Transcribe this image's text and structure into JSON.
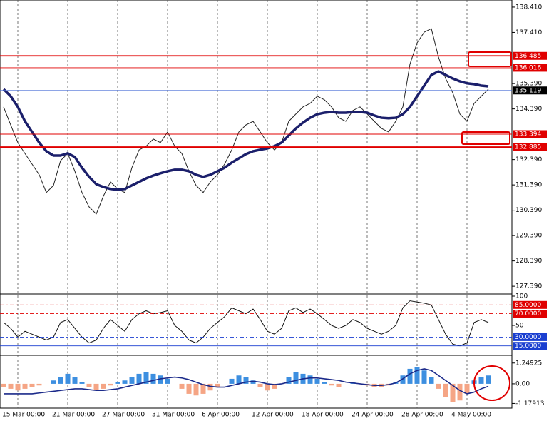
{
  "chart_data": [
    {
      "type": "line",
      "categories": [
        null,
        null,
        "15 Mar 00:00",
        null,
        null,
        null,
        null,
        null,
        null,
        "21 Mar 00:00",
        null,
        null,
        null,
        null,
        null,
        null,
        "27 Mar 00:00",
        null,
        null,
        null,
        null,
        null,
        null,
        "31 Mar 00:00",
        null,
        null,
        null,
        null,
        null,
        null,
        "6 Apr 00:00",
        null,
        null,
        null,
        null,
        null,
        null,
        "12 Apr 00:00",
        null,
        null,
        null,
        null,
        null,
        null,
        "18 Apr 00:00",
        null,
        null,
        null,
        null,
        null,
        null,
        "24 Apr 00:00",
        null,
        null,
        null,
        null,
        null,
        null,
        "28 Apr 00:00",
        null,
        null,
        null,
        null,
        null,
        null,
        "4 May 00:00",
        null,
        null,
        null
      ],
      "ylim": [
        127.14,
        138.69
      ],
      "yticks": [
        {
          "value": 138.41,
          "label": "138.410"
        },
        {
          "value": 137.41,
          "label": "137.410"
        },
        {
          "value": 135.39,
          "label": "135.390"
        },
        {
          "value": 134.39,
          "label": "134.390"
        },
        {
          "value": 132.39,
          "label": "132.390"
        },
        {
          "value": 131.39,
          "label": "131.390"
        },
        {
          "value": 130.39,
          "label": "130.390"
        },
        {
          "value": 129.39,
          "label": "129.390"
        },
        {
          "value": 128.39,
          "label": "128.390"
        },
        {
          "value": 127.39,
          "label": "127.390"
        }
      ],
      "series": [
        {
          "type": "line",
          "color": "#222222",
          "style": "thin",
          "values": [
            134.47,
            133.76,
            133.06,
            132.63,
            132.21,
            131.79,
            131.09,
            131.37,
            132.35,
            132.63,
            131.93,
            131.09,
            130.52,
            130.24,
            130.95,
            131.51,
            131.23,
            131.09,
            132.07,
            132.77,
            132.92,
            133.2,
            133.06,
            133.48,
            132.92,
            132.63,
            131.93,
            131.37,
            131.09,
            131.51,
            131.79,
            132.21,
            132.77,
            133.48,
            133.76,
            133.9,
            133.48,
            133.06,
            132.77,
            133.06,
            133.9,
            134.19,
            134.47,
            134.61,
            134.89,
            134.75,
            134.47,
            134.04,
            133.9,
            134.33,
            134.47,
            134.19,
            133.9,
            133.62,
            133.48,
            133.9,
            134.47,
            136.16,
            137.0,
            137.42,
            137.56,
            136.44,
            135.59,
            135.03,
            134.19,
            133.9,
            134.61,
            134.89,
            135.17
          ]
        },
        {
          "type": "line",
          "color": "#1b1f6b",
          "style": "thick",
          "values": [
            135.17,
            134.89,
            134.47,
            133.9,
            133.48,
            133.06,
            132.72,
            132.55,
            132.55,
            132.64,
            132.49,
            132.07,
            131.71,
            131.42,
            131.31,
            131.23,
            131.2,
            131.23,
            131.37,
            131.51,
            131.65,
            131.76,
            131.85,
            131.93,
            131.99,
            131.99,
            131.93,
            131.79,
            131.71,
            131.79,
            131.93,
            132.07,
            132.27,
            132.44,
            132.61,
            132.72,
            132.78,
            132.83,
            132.92,
            133.06,
            133.34,
            133.62,
            133.85,
            134.04,
            134.18,
            134.24,
            134.27,
            134.24,
            134.24,
            134.27,
            134.27,
            134.24,
            134.13,
            134.04,
            134.02,
            134.04,
            134.18,
            134.47,
            134.89,
            135.31,
            135.73,
            135.87,
            135.73,
            135.59,
            135.48,
            135.4,
            135.37,
            135.31,
            135.28
          ]
        }
      ],
      "hlines": [
        {
          "value": 136.485,
          "color": "#e00000",
          "label_bg": "#e00000",
          "style": "thick"
        },
        {
          "value": 136.016,
          "color": "#e00000",
          "label_bg": "#e00000",
          "style": "thin"
        },
        {
          "value": 135.119,
          "color": "#4a6fd8",
          "label_bg": "#000000",
          "style": "thin"
        },
        {
          "value": 133.394,
          "color": "#e00000",
          "label_bg": "#e00000",
          "style": "thin"
        },
        {
          "value": 132.885,
          "color": "#e00000",
          "label_bg": "#e00000",
          "style": "thick"
        }
      ]
    },
    {
      "type": "line",
      "ylim": [
        0,
        100
      ],
      "yticks": [
        100,
        50
      ],
      "series": [
        {
          "type": "line",
          "color": "#111111",
          "style": "thin",
          "values": [
            55,
            45,
            30,
            40,
            35,
            30,
            25,
            30,
            55,
            60,
            45,
            30,
            20,
            25,
            45,
            60,
            50,
            40,
            60,
            70,
            75,
            70,
            72,
            75,
            50,
            40,
            25,
            20,
            30,
            45,
            55,
            65,
            80,
            75,
            70,
            78,
            60,
            40,
            35,
            45,
            75,
            80,
            72,
            78,
            70,
            60,
            50,
            45,
            50,
            60,
            55,
            45,
            40,
            35,
            40,
            50,
            80,
            92,
            90,
            88,
            85,
            60,
            35,
            18,
            15,
            20,
            55,
            60,
            55
          ]
        }
      ],
      "hlines": [
        {
          "value": 85,
          "label": "85.0000",
          "color": "#e00000",
          "label_bg": "#e00000",
          "style": "dashed"
        },
        {
          "value": 70,
          "label": "70.0000",
          "color": "#e00000",
          "label_bg": "#e00000",
          "style": "dashed"
        },
        {
          "value": 30,
          "label": "30.0000",
          "color": "#1a3fd0",
          "label_bg": "#1a3fd0",
          "style": "dashed"
        },
        {
          "value": 15,
          "label": "15.0000",
          "color": "#1a3fd0",
          "label_bg": "#1a3fd0",
          "style": "thin"
        }
      ]
    },
    {
      "type": "bar",
      "ylim": [
        -1.375,
        1.625
      ],
      "yticks": [
        1.24925,
        {
          "value": 0,
          "label": "0.00"
        },
        -1.17913
      ],
      "series": [
        {
          "type": "bar",
          "color": "#3d8fe0",
          "negative_color": "#f5a585",
          "values": [
            -0.2,
            -0.3,
            -0.4,
            -0.3,
            -0.2,
            -0.1,
            0.0,
            0.2,
            0.4,
            0.6,
            0.4,
            0.1,
            -0.2,
            -0.4,
            -0.3,
            -0.1,
            0.1,
            0.2,
            0.4,
            0.6,
            0.7,
            0.6,
            0.5,
            0.3,
            0.0,
            -0.3,
            -0.6,
            -0.7,
            -0.6,
            -0.4,
            -0.2,
            0.0,
            0.3,
            0.5,
            0.4,
            0.2,
            -0.2,
            -0.4,
            -0.3,
            0.0,
            0.4,
            0.7,
            0.6,
            0.5,
            0.3,
            0.1,
            -0.1,
            -0.2,
            0.0,
            0.1,
            0.0,
            -0.1,
            -0.2,
            -0.2,
            -0.1,
            0.1,
            0.5,
            0.9,
            1.0,
            0.8,
            0.4,
            -0.3,
            -0.8,
            -1.1,
            -1.0,
            -0.6,
            0.2,
            0.4,
            0.5
          ]
        },
        {
          "type": "line",
          "color": "#1b2a8a",
          "style": "medium",
          "values": [
            -0.6,
            -0.6,
            -0.6,
            -0.6,
            -0.6,
            -0.55,
            -0.5,
            -0.45,
            -0.4,
            -0.35,
            -0.3,
            -0.3,
            -0.35,
            -0.4,
            -0.4,
            -0.35,
            -0.3,
            -0.2,
            -0.1,
            0.0,
            0.1,
            0.2,
            0.3,
            0.35,
            0.4,
            0.35,
            0.25,
            0.1,
            -0.05,
            -0.15,
            -0.2,
            -0.2,
            -0.1,
            0.0,
            0.1,
            0.15,
            0.1,
            0.0,
            -0.05,
            0.0,
            0.1,
            0.2,
            0.3,
            0.35,
            0.35,
            0.3,
            0.25,
            0.2,
            0.1,
            0.05,
            0.0,
            -0.05,
            -0.1,
            -0.1,
            -0.05,
            0.05,
            0.3,
            0.6,
            0.8,
            0.9,
            0.8,
            0.5,
            0.2,
            -0.1,
            -0.4,
            -0.6,
            -0.5,
            -0.3,
            -0.15
          ]
        }
      ],
      "hlines": []
    }
  ]
}
